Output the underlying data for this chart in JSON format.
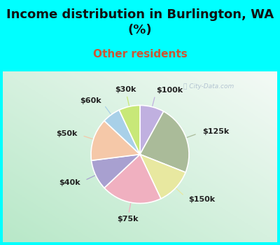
{
  "title": "Income distribution in Burlington, WA\n(%)",
  "subtitle": "Other residents",
  "watermark": "ⓘ City-Data.com",
  "slices": [
    {
      "label": "$100k",
      "value": 8,
      "color": "#c0b0e0"
    },
    {
      "label": "$125k",
      "value": 23,
      "color": "#aabb99"
    },
    {
      "label": "$150k",
      "value": 12,
      "color": "#e8e8a0"
    },
    {
      "label": "$75k",
      "value": 20,
      "color": "#f0b0c0"
    },
    {
      "label": "$40k",
      "value": 10,
      "color": "#a8a0d0"
    },
    {
      "label": "$50k",
      "value": 14,
      "color": "#f5c8a8"
    },
    {
      "label": "$60k",
      "value": 6,
      "color": "#a8d0e8"
    },
    {
      "label": "$30k",
      "value": 7,
      "color": "#c8e878"
    }
  ],
  "title_color": "#111111",
  "subtitle_color": "#cc5533",
  "bg_cyan": "#00ffff",
  "bg_chart_grad_start": "#b8e8c8",
  "bg_chart_grad_end": "#f0f8f4",
  "title_fontsize": 13,
  "subtitle_fontsize": 11,
  "label_fontsize": 8
}
